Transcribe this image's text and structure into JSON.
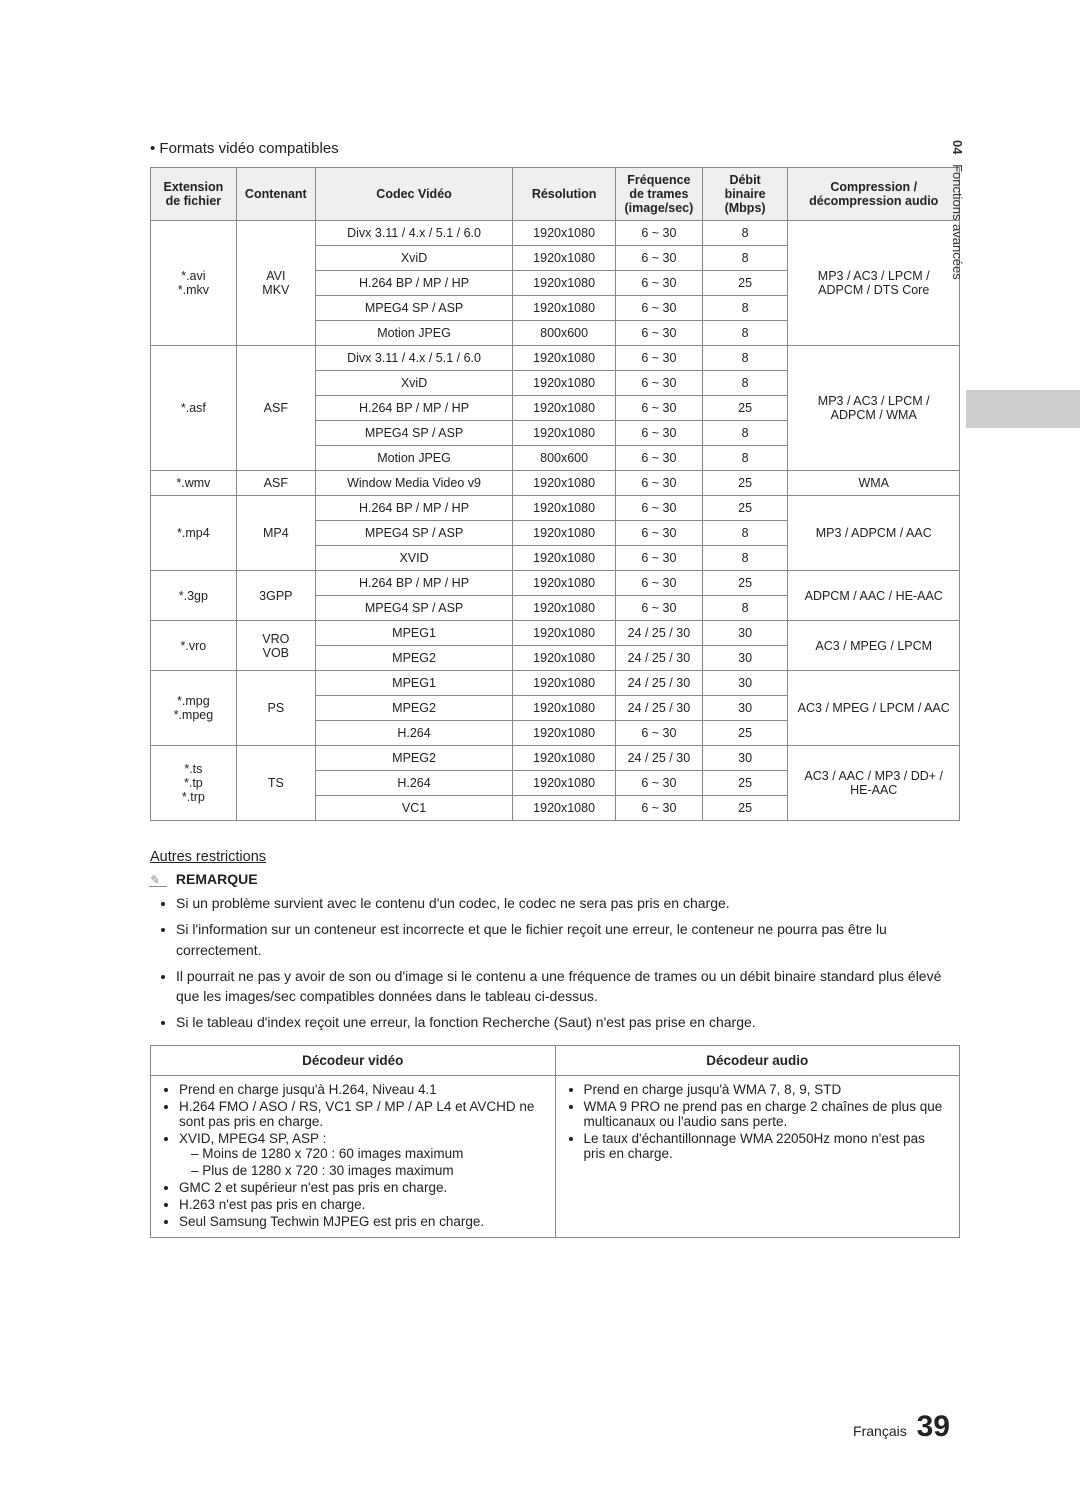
{
  "side": {
    "num": "04",
    "label": "Fonctions avancées"
  },
  "heading": "Formats vidéo compatibles",
  "table": {
    "headers": [
      "Extension de fichier",
      "Contenant",
      "Codec Vidéo",
      "Résolution",
      "Fréquence de trames (image/sec)",
      "Débit binaire (Mbps)",
      "Compression / décompression audio"
    ],
    "blocks": [
      {
        "ext": "*.avi\n*.mkv",
        "container": "AVI\nMKV",
        "rows": [
          [
            "Divx 3.11 / 4.x / 5.1 / 6.0",
            "1920x1080",
            "6 ~ 30",
            "8"
          ],
          [
            "XviD",
            "1920x1080",
            "6 ~ 30",
            "8"
          ],
          [
            "H.264 BP / MP / HP",
            "1920x1080",
            "6 ~ 30",
            "25"
          ],
          [
            "MPEG4 SP / ASP",
            "1920x1080",
            "6 ~ 30",
            "8"
          ],
          [
            "Motion JPEG",
            "800x600",
            "6 ~ 30",
            "8"
          ]
        ],
        "audio": "MP3 / AC3 / LPCM / ADPCM / DTS Core"
      },
      {
        "ext": "*.asf",
        "container": "ASF",
        "rows": [
          [
            "Divx 3.11 / 4.x / 5.1 / 6.0",
            "1920x1080",
            "6 ~ 30",
            "8"
          ],
          [
            "XviD",
            "1920x1080",
            "6 ~ 30",
            "8"
          ],
          [
            "H.264 BP / MP / HP",
            "1920x1080",
            "6 ~ 30",
            "25"
          ],
          [
            "MPEG4 SP / ASP",
            "1920x1080",
            "6 ~ 30",
            "8"
          ],
          [
            "Motion JPEG",
            "800x600",
            "6 ~ 30",
            "8"
          ]
        ],
        "audio": "MP3 / AC3 / LPCM / ADPCM / WMA"
      },
      {
        "ext": "*.wmv",
        "container": "ASF",
        "rows": [
          [
            "Window Media Video v9",
            "1920x1080",
            "6 ~ 30",
            "25"
          ]
        ],
        "audio": "WMA"
      },
      {
        "ext": "*.mp4",
        "container": "MP4",
        "rows": [
          [
            "H.264 BP / MP / HP",
            "1920x1080",
            "6 ~ 30",
            "25"
          ],
          [
            "MPEG4 SP / ASP",
            "1920x1080",
            "6 ~ 30",
            "8"
          ],
          [
            "XVID",
            "1920x1080",
            "6 ~ 30",
            "8"
          ]
        ],
        "audio": "MP3 / ADPCM / AAC"
      },
      {
        "ext": "*.3gp",
        "container": "3GPP",
        "rows": [
          [
            "H.264 BP / MP / HP",
            "1920x1080",
            "6 ~ 30",
            "25"
          ],
          [
            "MPEG4 SP / ASP",
            "1920x1080",
            "6 ~ 30",
            "8"
          ]
        ],
        "audio": "ADPCM / AAC / HE-AAC"
      },
      {
        "ext": "*.vro",
        "container": "VRO\nVOB",
        "rows": [
          [
            "MPEG1",
            "1920x1080",
            "24 / 25 / 30",
            "30"
          ],
          [
            "MPEG2",
            "1920x1080",
            "24 / 25 / 30",
            "30"
          ]
        ],
        "audio": "AC3 / MPEG / LPCM"
      },
      {
        "ext": "*.mpg\n*.mpeg",
        "container": "PS",
        "rows": [
          [
            "MPEG1",
            "1920x1080",
            "24 / 25 / 30",
            "30"
          ],
          [
            "MPEG2",
            "1920x1080",
            "24 / 25 / 30",
            "30"
          ],
          [
            "H.264",
            "1920x1080",
            "6 ~ 30",
            "25"
          ]
        ],
        "audio": "AC3 / MPEG / LPCM / AAC"
      },
      {
        "ext": "*.ts\n*.tp\n*.trp",
        "container": "TS",
        "rows": [
          [
            "MPEG2",
            "1920x1080",
            "24 / 25 / 30",
            "30"
          ],
          [
            "H.264",
            "1920x1080",
            "6 ~ 30",
            "25"
          ],
          [
            "VC1",
            "1920x1080",
            "6 ~ 30",
            "25"
          ]
        ],
        "audio": "AC3 / AAC / MP3 / DD+ / HE-AAC"
      }
    ]
  },
  "otherRestrictions": "Autres restrictions",
  "remarqueLabel": "REMARQUE",
  "notes": [
    "Si un problème survient avec le contenu d'un codec, le codec ne sera pas pris en charge.",
    "Si l'information sur un conteneur est incorrecte et que le fichier reçoit une erreur, le conteneur ne pourra pas être lu correctement.",
    "Il pourrait ne pas y avoir de son ou d'image si le contenu a une fréquence de trames ou un débit binaire standard plus élevé que les images/sec compatibles données dans le tableau ci-dessus.",
    "Si le tableau d'index reçoit une erreur, la fonction Recherche (Saut) n'est pas prise en charge."
  ],
  "decoders": {
    "videoHeader": "Décodeur vidéo",
    "audioHeader": "Décodeur audio",
    "video": [
      "Prend en charge jusqu'à H.264, Niveau 4.1",
      "H.264 FMO / ASO / RS, VC1 SP / MP / AP L4 et AVCHD ne sont pas pris en charge.",
      "XVID, MPEG4 SP, ASP :",
      [
        "Moins de 1280 x 720 : 60 images maximum",
        "Plus de 1280 x 720 : 30 images maximum"
      ],
      "GMC 2 et supérieur n'est pas pris en charge.",
      "H.263 n'est pas pris en charge.",
      "Seul Samsung Techwin MJPEG est pris en charge."
    ],
    "audio": [
      "Prend en charge jusqu'à WMA 7, 8, 9, STD",
      "WMA 9 PRO ne prend pas en charge 2 chaînes de plus que multicanaux ou l'audio sans perte.",
      "Le taux d'échantillonnage WMA 22050Hz mono n'est pas pris en charge."
    ]
  },
  "footer": {
    "lang": "Français",
    "page": "39"
  }
}
